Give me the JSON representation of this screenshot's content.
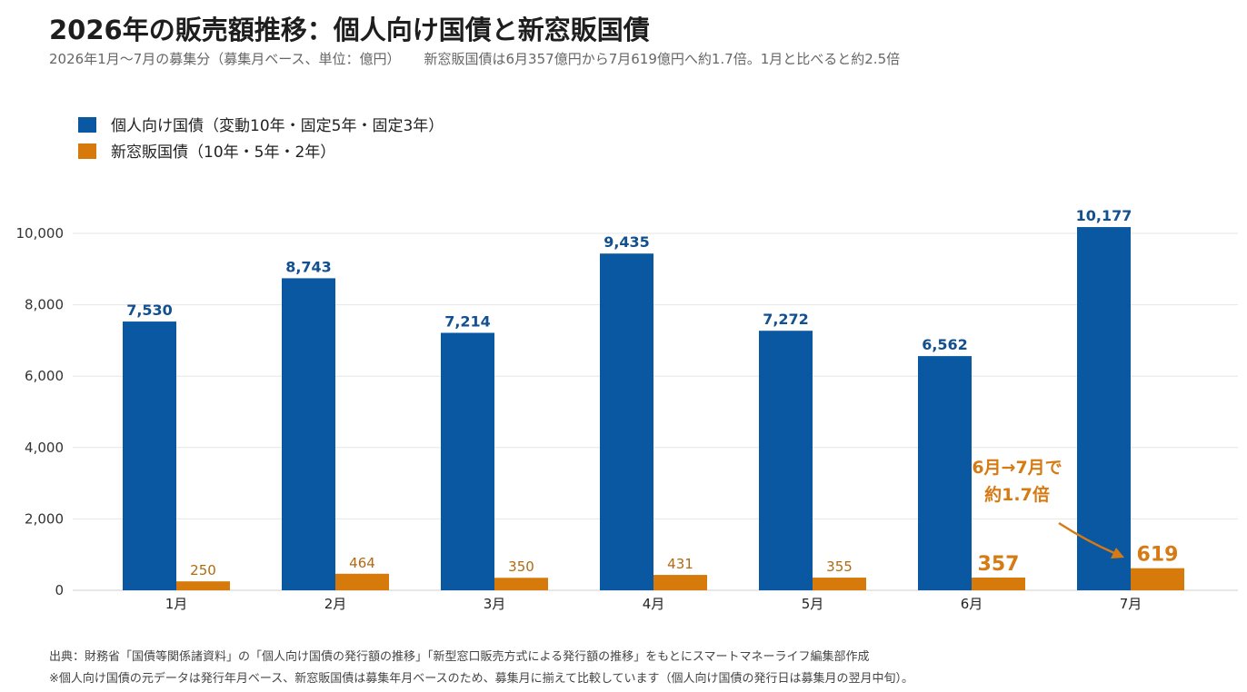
{
  "title": "2026年の販売額推移：個人向け国債と新窓販国債",
  "subtitle": "2026年1月〜7月の募集分（募集月ベース、単位：億円）",
  "subtitle_note": "新窓販国債は6月357億円から7月619億円へ約1.7倍。1月と比べると約2.5倍",
  "colors": {
    "series_a": "#0a58a2",
    "series_b": "#d67a0c",
    "grid": "#e6e6e6",
    "annotation": "#d67a14"
  },
  "chart_data": {
    "type": "bar",
    "categories": [
      "1月",
      "2月",
      "3月",
      "4月",
      "5月",
      "6月",
      "7月"
    ],
    "series": [
      {
        "name": "個人向け国債（変動10年・固定5年・固定3年）",
        "values": [
          7530,
          8743,
          7214,
          9435,
          7272,
          6562,
          10177
        ]
      },
      {
        "name": "新窓販国債（10年・5年・2年）",
        "values": [
          250,
          464,
          350,
          431,
          355,
          357,
          619
        ]
      }
    ],
    "ylim": [
      0,
      10000
    ],
    "yticks": [
      0,
      2000,
      4000,
      6000,
      8000,
      10000
    ],
    "grid": true,
    "legend_position": "top-left",
    "annotation": {
      "line1": "6月→7月で",
      "line2": "約1.7倍"
    }
  },
  "footnotes": [
    "出典：財務省「国債等関係諸資料」の「個人向け国債の発行額の推移」「新型窓口販売方式による発行額の推移」をもとにスマートマネーライフ編集部作成",
    "※個人向け国債の元データは発行年月ベース、新窓販国債は募集年月ベースのため、募集月に揃えて比較しています（個人向け国債の発行日は募集月の翌月中旬）。"
  ]
}
